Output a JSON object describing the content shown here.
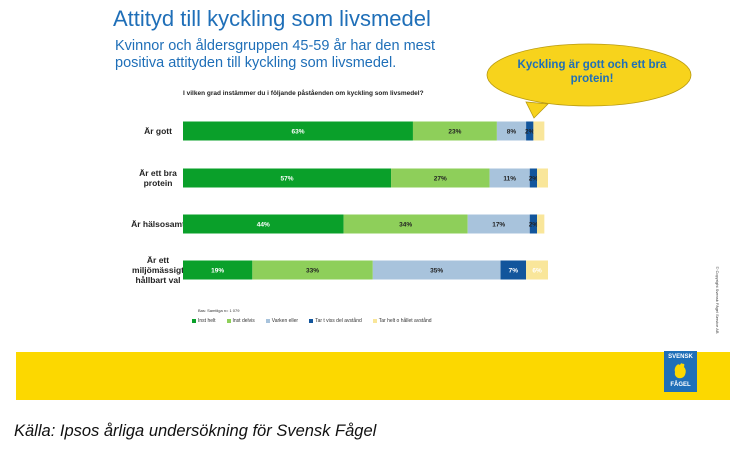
{
  "header": {
    "title": "Attityd till kyckling som livsmedel",
    "subtitle": "Kvinnor och åldersgruppen 45-59 år har den mest positiva attityden till kyckling som livsmedel."
  },
  "callout": {
    "text": "Kyckling är gott och ett bra protein!"
  },
  "chart_data": {
    "type": "bar",
    "orientation": "horizontal",
    "stacked": true,
    "title": "I vilken grad instämmer du i följande påståenden om kyckling som livsmedel?",
    "categories": [
      [
        "Är gott"
      ],
      [
        "Är ett bra",
        "protein"
      ],
      [
        "Är hälsosamt"
      ],
      [
        "Är ett",
        "miljömässigt",
        "hållbart val"
      ]
    ],
    "series": [
      {
        "name": "Inst helt",
        "color": "#0aa02a",
        "values": [
          63,
          57,
          44,
          19
        ],
        "labels": [
          "63%",
          "57%",
          "44%",
          "19%"
        ]
      },
      {
        "name": "Inst delvis",
        "color": "#8ecf5a",
        "values": [
          23,
          27,
          34,
          33
        ],
        "labels": [
          "23%",
          "27%",
          "34%",
          "33%"
        ]
      },
      {
        "name": "Varken eller",
        "color": "#a8c3dc",
        "values": [
          8,
          11,
          17,
          35
        ],
        "labels": [
          "8%",
          "11%",
          "17%",
          "35%"
        ]
      },
      {
        "name": "Tar t viss del avstånd",
        "color": "#12559c",
        "values": [
          2,
          2,
          2,
          7
        ],
        "labels": [
          "2%",
          "2%",
          "2%",
          "7%"
        ]
      },
      {
        "name": "Tar helt o hållet avstånd",
        "color": "#f9e69a",
        "values": [
          3,
          3,
          2,
          6
        ],
        "labels": [
          "",
          "",
          "",
          "6%"
        ]
      }
    ],
    "xlim": [
      0,
      100
    ],
    "legend_position": "bottom",
    "base_note": "Bas:       Samtliga n= 1 079"
  },
  "side_note": "© Copyright Svensk Fågel Service AB",
  "logo": {
    "top": "SVENSK",
    "bottom": "FÅGEL"
  },
  "footer": {
    "source": "Källa: Ipsos årliga undersökning för Svensk Fågel"
  },
  "colors": {
    "brand_blue": "#1f6fb8",
    "band_yellow": "#fcd800",
    "bubble_yellow": "#f7d31c"
  }
}
